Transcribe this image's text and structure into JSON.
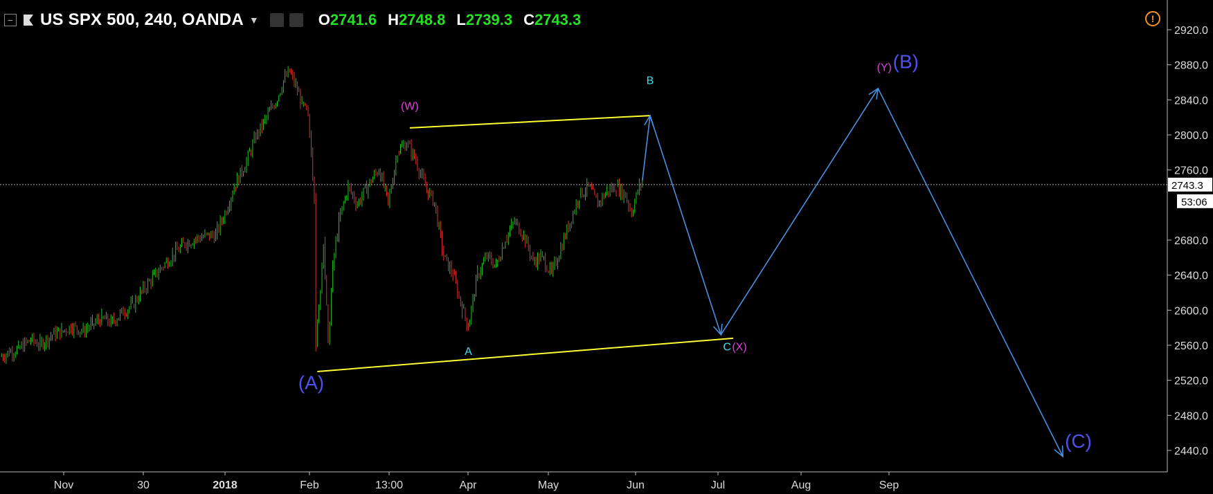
{
  "header": {
    "collapse_icon": "minus-square-icon",
    "flag_icon": "flag-icon",
    "symbol": "US SPX 500, 240, OANDA",
    "ohlc": [
      {
        "key": "O",
        "value": "2741.6"
      },
      {
        "key": "H",
        "value": "2748.8"
      },
      {
        "key": "L",
        "value": "2739.3"
      },
      {
        "key": "C",
        "value": "2743.3"
      }
    ],
    "warning_icon": "warning-circle-icon",
    "warning_glyph": "!"
  },
  "chart_data": {
    "type": "line",
    "yaxis": {
      "ticks": [
        2920.0,
        2880.0,
        2840.0,
        2800.0,
        2760.0,
        2680.0,
        2640.0,
        2600.0,
        2560.0,
        2520.0,
        2480.0,
        2440.0
      ],
      "tick_labels": [
        "2920.0",
        "2880.0",
        "2840.0",
        "2800.0",
        "2760.0",
        "2680.0",
        "2640.0",
        "2600.0",
        "2560.0",
        "2520.0",
        "2480.0",
        "2440.0"
      ],
      "ylim": [
        2425,
        2955
      ]
    },
    "xaxis": {
      "tick_labels": [
        "Nov",
        "30",
        "2018",
        "Feb",
        "13:00",
        "Apr",
        "May",
        "Jun",
        "Jul",
        "Aug",
        "Sep"
      ],
      "bold": [
        "2018"
      ]
    },
    "current_price": {
      "value": 2743.3,
      "label": "2743.3",
      "countdown": "53:06"
    },
    "price_series": [
      {
        "t": 0.0,
        "v": 2547
      },
      {
        "t": 0.3,
        "v": 2552
      },
      {
        "t": 0.6,
        "v": 2556
      },
      {
        "t": 1.0,
        "v": 2566
      },
      {
        "t": 1.3,
        "v": 2561
      },
      {
        "t": 1.7,
        "v": 2572
      },
      {
        "t": 2.0,
        "v": 2576
      },
      {
        "t": 2.3,
        "v": 2581
      },
      {
        "t": 2.7,
        "v": 2577
      },
      {
        "t": 3.0,
        "v": 2584
      },
      {
        "t": 3.3,
        "v": 2591
      },
      {
        "t": 3.6,
        "v": 2586
      },
      {
        "t": 4.0,
        "v": 2598
      },
      {
        "t": 4.3,
        "v": 2606
      },
      {
        "t": 4.6,
        "v": 2621
      },
      {
        "t": 5.0,
        "v": 2639
      },
      {
        "t": 5.3,
        "v": 2651
      },
      {
        "t": 5.6,
        "v": 2663
      },
      {
        "t": 6.0,
        "v": 2676
      },
      {
        "t": 6.3,
        "v": 2681
      },
      {
        "t": 6.6,
        "v": 2684
      },
      {
        "t": 7.0,
        "v": 2686
      },
      {
        "t": 7.3,
        "v": 2711
      },
      {
        "t": 7.6,
        "v": 2741
      },
      {
        "t": 8.0,
        "v": 2770
      },
      {
        "t": 8.3,
        "v": 2797
      },
      {
        "t": 8.6,
        "v": 2817
      },
      {
        "t": 9.0,
        "v": 2842
      },
      {
        "t": 9.2,
        "v": 2862
      },
      {
        "t": 9.4,
        "v": 2872
      },
      {
        "t": 9.6,
        "v": 2856
      },
      {
        "t": 9.8,
        "v": 2836
      },
      {
        "t": 10.0,
        "v": 2821
      },
      {
        "t": 10.1,
        "v": 2781
      },
      {
        "t": 10.2,
        "v": 2732
      },
      {
        "t": 10.25,
        "v": 2561
      },
      {
        "t": 10.35,
        "v": 2601
      },
      {
        "t": 10.5,
        "v": 2681
      },
      {
        "t": 10.65,
        "v": 2561
      },
      {
        "t": 10.8,
        "v": 2650
      },
      {
        "t": 11.0,
        "v": 2702
      },
      {
        "t": 11.3,
        "v": 2741
      },
      {
        "t": 11.6,
        "v": 2721
      },
      {
        "t": 12.0,
        "v": 2746
      },
      {
        "t": 12.3,
        "v": 2761
      },
      {
        "t": 12.6,
        "v": 2722
      },
      {
        "t": 12.9,
        "v": 2781
      },
      {
        "t": 13.2,
        "v": 2791
      },
      {
        "t": 13.5,
        "v": 2771
      },
      {
        "t": 13.8,
        "v": 2741
      },
      {
        "t": 14.1,
        "v": 2723
      },
      {
        "t": 14.4,
        "v": 2661
      },
      {
        "t": 14.7,
        "v": 2641
      },
      {
        "t": 15.0,
        "v": 2602
      },
      {
        "t": 15.2,
        "v": 2581
      },
      {
        "t": 15.5,
        "v": 2641
      },
      {
        "t": 15.8,
        "v": 2661
      },
      {
        "t": 16.1,
        "v": 2651
      },
      {
        "t": 16.4,
        "v": 2681
      },
      {
        "t": 16.7,
        "v": 2701
      },
      {
        "t": 17.0,
        "v": 2686
      },
      {
        "t": 17.3,
        "v": 2656
      },
      {
        "t": 17.6,
        "v": 2661
      },
      {
        "t": 17.9,
        "v": 2641
      },
      {
        "t": 18.2,
        "v": 2671
      },
      {
        "t": 18.5,
        "v": 2701
      },
      {
        "t": 18.8,
        "v": 2731
      },
      {
        "t": 19.1,
        "v": 2741
      },
      {
        "t": 19.4,
        "v": 2721
      },
      {
        "t": 19.7,
        "v": 2736
      },
      {
        "t": 20.0,
        "v": 2741
      },
      {
        "t": 20.3,
        "v": 2731
      },
      {
        "t": 20.5,
        "v": 2711
      },
      {
        "t": 20.7,
        "v": 2736
      },
      {
        "t": 20.85,
        "v": 2748
      }
    ],
    "trendlines": [
      {
        "name": "upper",
        "t1": 13.3,
        "v1": 2808,
        "t2": 21.1,
        "v2": 2822
      },
      {
        "name": "lower",
        "t1": 10.3,
        "v1": 2530,
        "t2": 23.8,
        "v2": 2568
      }
    ],
    "projection": [
      {
        "t": 20.85,
        "v": 2748
      },
      {
        "t": 21.1,
        "v": 2822
      },
      {
        "t": 23.4,
        "v": 2572
      },
      {
        "t": 28.5,
        "v": 2853
      },
      {
        "t": 34.5,
        "v": 2433
      }
    ],
    "wave_labels": [
      {
        "text": "(W)",
        "t": 13.3,
        "v": 2829,
        "color": "#e040e0"
      },
      {
        "text": "B",
        "t": 21.1,
        "v": 2858,
        "color": "#40e0f0"
      },
      {
        "text": "(Y)",
        "t": 28.7,
        "v": 2873,
        "color": "#e040e0"
      },
      {
        "text": "(B)",
        "t": 29.4,
        "v": 2876,
        "color": "#5050f0"
      },
      {
        "text": "(A)",
        "t": 10.1,
        "v": 2510,
        "color": "#5050f0"
      },
      {
        "text": "A",
        "t": 15.2,
        "v": 2549,
        "color": "#40e0f0"
      },
      {
        "text": "C",
        "t": 23.6,
        "v": 2554,
        "color": "#40e0f0"
      },
      {
        "text": "(X)",
        "t": 24.0,
        "v": 2554,
        "color": "#e040e0"
      },
      {
        "text": "(C)",
        "t": 35.0,
        "v": 2443,
        "color": "#5050f0"
      }
    ],
    "colors": {
      "up": "#26c226",
      "down": "#e03030",
      "trendline": "#ffff33",
      "projection": "#4a90e2",
      "background": "#000000"
    },
    "grid": false
  }
}
